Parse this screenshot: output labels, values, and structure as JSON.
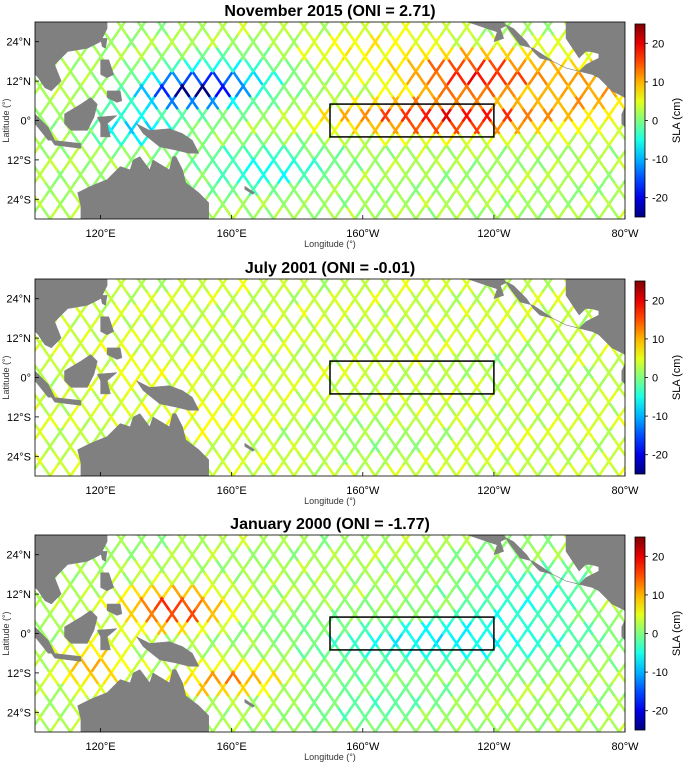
{
  "figure": {
    "panels": [
      {
        "title": "November 2015 (ONI = 2.71)",
        "oni": 2.71,
        "month": "November",
        "year": 2015,
        "anomaly_features": [
          "strong negative SLA (about -20 cm) in western Pacific near 5-15N, 130-170E",
          "strong positive SLA (about +15 to +20 cm) in eastern equatorial Pacific and near 10-20N, 120-140W"
        ]
      },
      {
        "title": "July 2001 (ONI = -0.01)",
        "oni": -0.01,
        "month": "July",
        "year": 2001,
        "anomaly_features": [
          "near-neutral SLA (about 0 to +5 cm) across basin"
        ]
      },
      {
        "title": "January 2000 (ONI = -1.77)",
        "oni": -1.77,
        "month": "January",
        "year": 2000,
        "anomaly_features": [
          "positive SLA (about +10 to +20 cm) in western Pacific near 0-15N, 125-160E",
          "negative SLA (about -5 to -10 cm) in central and eastern equatorial Pacific"
        ]
      }
    ],
    "axes": {
      "xlabel": "Longitude (°)",
      "ylabel": "Latitude (°)",
      "x_ticks": [
        "120°E",
        "160°E",
        "160°W",
        "120°W",
        "80°W"
      ],
      "x_tick_values": [
        120,
        160,
        200,
        240,
        280
      ],
      "y_ticks": [
        "24°N",
        "12°N",
        "0°",
        "12°S",
        "24°S"
      ],
      "y_tick_values": [
        24,
        12,
        0,
        -12,
        -24
      ],
      "xlim": [
        100,
        280
      ],
      "ylim": [
        -30,
        30
      ]
    },
    "colorbar": {
      "label": "SLA (cm)",
      "ticks": [
        "20",
        "10",
        "0",
        "-10",
        "-20"
      ],
      "tick_values": [
        20,
        10,
        0,
        -10,
        -20
      ],
      "range": [
        -25,
        25
      ],
      "colormap": "jet",
      "colors": [
        "#000080",
        "#0000ff",
        "#00ffff",
        "#ffff00",
        "#ff0000",
        "#800000"
      ]
    },
    "niño_box": {
      "lon_range": [
        190,
        240
      ],
      "lat_range": [
        -5,
        5
      ],
      "stroke": "#000000"
    },
    "land_color": "#808080",
    "track_color_note": "altimeter ground tracks in diamond pattern colored by SLA"
  }
}
